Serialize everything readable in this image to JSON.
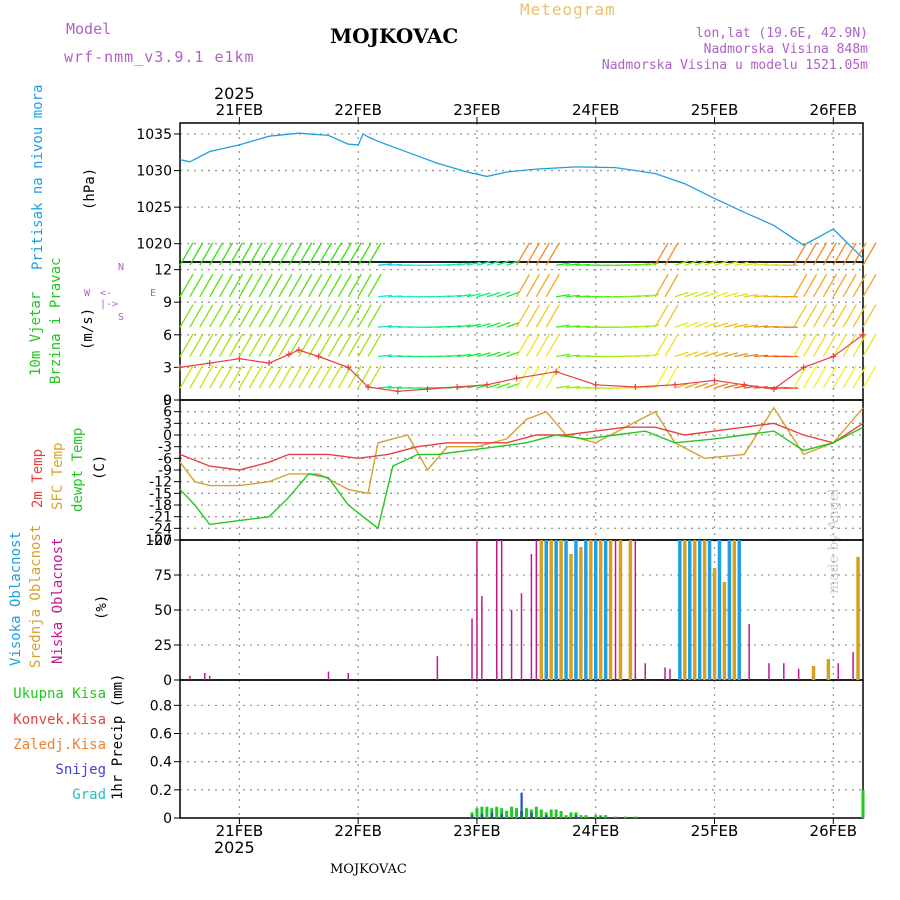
{
  "header": {
    "model_label": "Model",
    "model_name": "wrf-nmm_v3.9.1 e1km",
    "station": "MOJKOVAC",
    "meteogram": "Meteogram",
    "lonlat": "lon,lat (19.6E, 42.9N)",
    "altitude": "Nadmorska Visina 848m",
    "model_altitude": "Nadmorska Visina u modelu 1521.05m",
    "year_top": "2025",
    "year_bottom": "2025",
    "footer_station": "MOJKOVAC",
    "credit": "made by Angel"
  },
  "colors": {
    "pressure": "#1ea0e0",
    "temp2m": "#e84040",
    "sfc": "#d8a030",
    "dew": "#20c820",
    "high_cloud": "#20a0e0",
    "mid_cloud": "#d8a020",
    "low_cloud": "#c01890",
    "grid": "#999999"
  },
  "panel_labels": {
    "pressure": [
      "Pritisak na nivou mora"
    ],
    "pressure_unit": "(hPa)",
    "wind": [
      "10m Vjetar",
      "Brzina i Pravac"
    ],
    "wind_unit": "(m/s)",
    "compass_n": "N",
    "compass_s": "S",
    "compass_w": "W",
    "compass_e": "E",
    "compass_glyph": "<-|->",
    "temp": [
      "2m Temp",
      "SFC Temp",
      "dewpt Temp"
    ],
    "temp_unit": "(C)",
    "cloud": [
      "Visoka Oblacnost",
      "Srednja Oblacnost",
      "Niska Oblacnost"
    ],
    "cloud_unit": "(%)",
    "precip_items": [
      "Ukupna Kisa",
      "Konvek.Kisa",
      "Zaledj.Kisa",
      "Snijeg",
      "Grad"
    ],
    "precip_unit": "1hr Precip (mm)"
  },
  "chart_data": {
    "type": "line",
    "x_days": [
      "21FEB",
      "22FEB",
      "23FEB",
      "24FEB",
      "25FEB",
      "26FEB"
    ],
    "x_range_hours": [
      0,
      138
    ],
    "x_unit": "hours from 2025-02-20 12 UTC",
    "pressure": {
      "yticks": [
        1020,
        1025,
        1030,
        1035
      ],
      "ylim": [
        1017.5,
        1036.5
      ],
      "points": [
        [
          0,
          1031.5
        ],
        [
          2,
          1031.2
        ],
        [
          6,
          1032.6
        ],
        [
          12,
          1033.5
        ],
        [
          18,
          1034.7
        ],
        [
          24,
          1035.1
        ],
        [
          30,
          1034.8
        ],
        [
          32,
          1034.2
        ],
        [
          34,
          1033.6
        ],
        [
          36,
          1033.5
        ],
        [
          37,
          1035.0
        ],
        [
          38,
          1034.6
        ],
        [
          40,
          1034.0
        ],
        [
          46,
          1032.5
        ],
        [
          52,
          1031.0
        ],
        [
          58,
          1029.8
        ],
        [
          62,
          1029.2
        ],
        [
          66,
          1029.8
        ],
        [
          72,
          1030.2
        ],
        [
          80,
          1030.5
        ],
        [
          88,
          1030.4
        ],
        [
          96,
          1029.6
        ],
        [
          102,
          1028.2
        ],
        [
          108,
          1026.2
        ],
        [
          114,
          1024.3
        ],
        [
          120,
          1022.5
        ],
        [
          126,
          1019.8
        ],
        [
          132,
          1022.0
        ],
        [
          138,
          1018.0
        ]
      ]
    },
    "wind": {
      "yticks": [
        0,
        3,
        6,
        9,
        12
      ],
      "ylim": [
        0,
        12.7
      ],
      "speed_points": [
        [
          0,
          3.0
        ],
        [
          6,
          3.4
        ],
        [
          12,
          3.8
        ],
        [
          18,
          3.4
        ],
        [
          22,
          4.2
        ],
        [
          24,
          4.6
        ],
        [
          28,
          4.0
        ],
        [
          34,
          3.0
        ],
        [
          38,
          1.2
        ],
        [
          44,
          0.8
        ],
        [
          50,
          1.0
        ],
        [
          56,
          1.2
        ],
        [
          62,
          1.4
        ],
        [
          68,
          2.0
        ],
        [
          76,
          2.6
        ],
        [
          84,
          1.4
        ],
        [
          92,
          1.2
        ],
        [
          100,
          1.4
        ],
        [
          108,
          1.8
        ],
        [
          114,
          1.4
        ],
        [
          120,
          1.0
        ],
        [
          126,
          3.0
        ],
        [
          132,
          4.0
        ],
        [
          138,
          6.0
        ]
      ]
    },
    "temperature": {
      "yticks": [
        -27,
        -24,
        -21,
        -18,
        -15,
        -12,
        -9,
        -6,
        -3,
        0,
        3,
        6,
        9
      ],
      "ylim": [
        -27,
        9
      ],
      "temp2m": [
        [
          0,
          -5
        ],
        [
          6,
          -8
        ],
        [
          12,
          -9
        ],
        [
          18,
          -7
        ],
        [
          22,
          -5
        ],
        [
          30,
          -5
        ],
        [
          36,
          -6
        ],
        [
          42,
          -5
        ],
        [
          48,
          -3
        ],
        [
          54,
          -2
        ],
        [
          60,
          -2
        ],
        [
          66,
          -2
        ],
        [
          72,
          0
        ],
        [
          78,
          0
        ],
        [
          84,
          1
        ],
        [
          90,
          2
        ],
        [
          96,
          2
        ],
        [
          102,
          0
        ],
        [
          108,
          1
        ],
        [
          114,
          2
        ],
        [
          120,
          3
        ],
        [
          126,
          0
        ],
        [
          132,
          -2
        ],
        [
          138,
          3
        ]
      ],
      "sfc": [
        [
          0,
          -7
        ],
        [
          3,
          -12
        ],
        [
          6,
          -13
        ],
        [
          12,
          -13
        ],
        [
          18,
          -12
        ],
        [
          22,
          -10
        ],
        [
          28,
          -10
        ],
        [
          34,
          -14
        ],
        [
          38,
          -15
        ],
        [
          40,
          -2
        ],
        [
          46,
          0
        ],
        [
          50,
          -9
        ],
        [
          54,
          -3
        ],
        [
          60,
          -3
        ],
        [
          66,
          -1
        ],
        [
          70,
          4
        ],
        [
          74,
          6
        ],
        [
          78,
          0
        ],
        [
          84,
          -2
        ],
        [
          90,
          2
        ],
        [
          96,
          6
        ],
        [
          100,
          -2
        ],
        [
          106,
          -6
        ],
        [
          114,
          -5
        ],
        [
          120,
          7
        ],
        [
          126,
          -5
        ],
        [
          132,
          -2
        ],
        [
          138,
          7
        ]
      ],
      "dew": [
        [
          0,
          -14
        ],
        [
          3,
          -18
        ],
        [
          6,
          -23
        ],
        [
          12,
          -22
        ],
        [
          18,
          -21
        ],
        [
          22,
          -16
        ],
        [
          26,
          -10
        ],
        [
          30,
          -11
        ],
        [
          34,
          -18
        ],
        [
          38,
          -22
        ],
        [
          40,
          -24
        ],
        [
          43,
          -8
        ],
        [
          48,
          -5
        ],
        [
          52,
          -5
        ],
        [
          58,
          -4
        ],
        [
          64,
          -3
        ],
        [
          70,
          -2
        ],
        [
          76,
          0
        ],
        [
          82,
          -1
        ],
        [
          88,
          0
        ],
        [
          94,
          1
        ],
        [
          100,
          -2
        ],
        [
          108,
          -1
        ],
        [
          114,
          0
        ],
        [
          120,
          1
        ],
        [
          126,
          -4
        ],
        [
          132,
          -2
        ],
        [
          138,
          2
        ]
      ]
    },
    "clouds": {
      "yticks": [
        0,
        25,
        50,
        75,
        100
      ],
      "ylim": [
        0,
        100
      ],
      "bars": [
        {
          "h": 2,
          "v": 3,
          "t": "low"
        },
        {
          "h": 5,
          "v": 5,
          "t": "low"
        },
        {
          "h": 6,
          "v": 3,
          "t": "low"
        },
        {
          "h": 30,
          "v": 6,
          "t": "low"
        },
        {
          "h": 34,
          "v": 5,
          "t": "low"
        },
        {
          "h": 52,
          "v": 17,
          "t": "low"
        },
        {
          "h": 59,
          "v": 44,
          "t": "low"
        },
        {
          "h": 60,
          "v": 100,
          "t": "low"
        },
        {
          "h": 61,
          "v": 60,
          "t": "low"
        },
        {
          "h": 64,
          "v": 100,
          "t": "low"
        },
        {
          "h": 65,
          "v": 100,
          "t": "low"
        },
        {
          "h": 67,
          "v": 50,
          "t": "low"
        },
        {
          "h": 69,
          "v": 62,
          "t": "low"
        },
        {
          "h": 71,
          "v": 90,
          "t": "low"
        },
        {
          "h": 72,
          "v": 100,
          "t": "low"
        },
        {
          "h": 73,
          "v": 100,
          "t": "mid"
        },
        {
          "h": 74,
          "v": 100,
          "t": "high"
        },
        {
          "h": 75,
          "v": 100,
          "t": "mid"
        },
        {
          "h": 76,
          "v": 100,
          "t": "high"
        },
        {
          "h": 77,
          "v": 100,
          "t": "mid"
        },
        {
          "h": 78,
          "v": 100,
          "t": "high"
        },
        {
          "h": 79,
          "v": 90,
          "t": "mid"
        },
        {
          "h": 80,
          "v": 100,
          "t": "high"
        },
        {
          "h": 81,
          "v": 95,
          "t": "mid"
        },
        {
          "h": 82,
          "v": 100,
          "t": "high"
        },
        {
          "h": 83,
          "v": 100,
          "t": "mid"
        },
        {
          "h": 84,
          "v": 100,
          "t": "high"
        },
        {
          "h": 85,
          "v": 100,
          "t": "mid"
        },
        {
          "h": 86,
          "v": 100,
          "t": "high"
        },
        {
          "h": 87,
          "v": 100,
          "t": "mid"
        },
        {
          "h": 88,
          "v": 100,
          "t": "low"
        },
        {
          "h": 89,
          "v": 100,
          "t": "mid"
        },
        {
          "h": 91,
          "v": 100,
          "t": "mid"
        },
        {
          "h": 92,
          "v": 100,
          "t": "low"
        },
        {
          "h": 94,
          "v": 12,
          "t": "low"
        },
        {
          "h": 98,
          "v": 9,
          "t": "low"
        },
        {
          "h": 99,
          "v": 8,
          "t": "low"
        },
        {
          "h": 101,
          "v": 100,
          "t": "high"
        },
        {
          "h": 102,
          "v": 100,
          "t": "mid"
        },
        {
          "h": 103,
          "v": 100,
          "t": "high"
        },
        {
          "h": 104,
          "v": 100,
          "t": "mid"
        },
        {
          "h": 105,
          "v": 100,
          "t": "high"
        },
        {
          "h": 106,
          "v": 100,
          "t": "mid"
        },
        {
          "h": 107,
          "v": 100,
          "t": "high"
        },
        {
          "h": 108,
          "v": 80,
          "t": "mid"
        },
        {
          "h": 109,
          "v": 100,
          "t": "high"
        },
        {
          "h": 110,
          "v": 70,
          "t": "mid"
        },
        {
          "h": 111,
          "v": 100,
          "t": "high"
        },
        {
          "h": 112,
          "v": 100,
          "t": "mid"
        },
        {
          "h": 113,
          "v": 100,
          "t": "high"
        },
        {
          "h": 115,
          "v": 40,
          "t": "low"
        },
        {
          "h": 119,
          "v": 12,
          "t": "low"
        },
        {
          "h": 122,
          "v": 12,
          "t": "low"
        },
        {
          "h": 125,
          "v": 8,
          "t": "low"
        },
        {
          "h": 128,
          "v": 10,
          "t": "mid"
        },
        {
          "h": 131,
          "v": 15,
          "t": "mid"
        },
        {
          "h": 133,
          "v": 12,
          "t": "low"
        },
        {
          "h": 136,
          "v": 20,
          "t": "low"
        },
        {
          "h": 137,
          "v": 88,
          "t": "mid"
        }
      ]
    },
    "precip": {
      "yticks": [
        0,
        0.2,
        0.4,
        0.6,
        0.8
      ],
      "ylim": [
        0,
        0.98
      ],
      "total": [
        [
          59,
          0.04
        ],
        [
          60,
          0.07
        ],
        [
          61,
          0.08
        ],
        [
          62,
          0.08
        ],
        [
          63,
          0.07
        ],
        [
          64,
          0.08
        ],
        [
          65,
          0.07
        ],
        [
          66,
          0.05
        ],
        [
          67,
          0.08
        ],
        [
          68,
          0.07
        ],
        [
          69,
          0.05
        ],
        [
          70,
          0.07
        ],
        [
          71,
          0.06
        ],
        [
          72,
          0.08
        ],
        [
          73,
          0.06
        ],
        [
          74,
          0.04
        ],
        [
          75,
          0.06
        ],
        [
          76,
          0.06
        ],
        [
          77,
          0.05
        ],
        [
          78,
          0.02
        ],
        [
          79,
          0.04
        ],
        [
          80,
          0.04
        ],
        [
          81,
          0.02
        ],
        [
          82,
          0.02
        ],
        [
          84,
          0.02
        ],
        [
          85,
          0.02
        ],
        [
          86,
          0.02
        ],
        [
          88,
          0.01
        ],
        [
          90,
          0.01
        ],
        [
          92,
          0.01
        ],
        [
          138,
          0.2
        ]
      ],
      "snow": [
        [
          59,
          0.02
        ],
        [
          61,
          0.03
        ],
        [
          63,
          0.04
        ],
        [
          65,
          0.03
        ],
        [
          69,
          0.18
        ],
        [
          71,
          0.04
        ],
        [
          74,
          0.02
        ],
        [
          80,
          0.02
        ],
        [
          85,
          0.01
        ]
      ]
    }
  }
}
